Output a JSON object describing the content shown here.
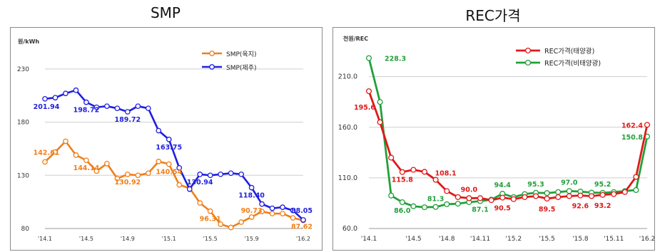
{
  "titles": {
    "left": "SMP",
    "right": "REC가격"
  },
  "colors": {
    "smp_land": "#f07f1a",
    "smp_jeju": "#1f1fe0",
    "rec_solar": "#e01818",
    "rec_nonsolar": "#22a03a",
    "grid": "#cfcfcf"
  },
  "chart_data": [
    {
      "type": "line",
      "title": "SMP",
      "ylabel": "원/kWh",
      "ylim": [
        80,
        250
      ],
      "yticks": [
        80,
        130,
        180,
        230
      ],
      "xticks": [
        "'14.1",
        "'14.5",
        "'14.9",
        "'15.1",
        "'15.5",
        "'15.9",
        "'16.2"
      ],
      "grid": "horizontal",
      "legend": "top-right",
      "x": [
        "'14.1",
        "'14.2",
        "'14.3",
        "'14.4",
        "'14.5",
        "'14.6",
        "'14.7",
        "'14.8",
        "'14.9",
        "'14.10",
        "'14.11",
        "'14.12",
        "'15.1",
        "'15.2",
        "'15.3",
        "'15.4",
        "'15.5",
        "'15.6",
        "'15.7",
        "'15.8",
        "'15.9",
        "'15.10",
        "'15.11",
        "'15.12",
        "'16.1",
        "'16.2"
      ],
      "series": [
        {
          "name": "SMP(육지)",
          "values": [
            142.61,
            152,
            162,
            149,
            144.14,
            134,
            141,
            127,
            130.92,
            130,
            132,
            143,
            140.54,
            121,
            118,
            104,
            96.31,
            84,
            81,
            86,
            90.73,
            96,
            94,
            94,
            90,
            87.62
          ],
          "labels": [
            {
              "i": 0,
              "text": "142.61"
            },
            {
              "i": 4,
              "text": "144.14"
            },
            {
              "i": 8,
              "text": "130.92"
            },
            {
              "i": 12,
              "text": "140.54"
            },
            {
              "i": 16,
              "text": "96.31"
            },
            {
              "i": 20,
              "text": "90.73"
            },
            {
              "i": 25,
              "text": "87.62"
            }
          ]
        },
        {
          "name": "SMP(제주)",
          "values": [
            201.94,
            203,
            207,
            210,
            198.72,
            194,
            195,
            193,
            189.72,
            195,
            193,
            172,
            163.75,
            137,
            117,
            130.94,
            130,
            131,
            132,
            131,
            118.4,
            103,
            99,
            100,
            97,
            88.05
          ],
          "labels": [
            {
              "i": 0,
              "text": "201.94"
            },
            {
              "i": 4,
              "text": "198.72"
            },
            {
              "i": 8,
              "text": "189.72"
            },
            {
              "i": 12,
              "text": "163.75"
            },
            {
              "i": 15,
              "text": "130.94"
            },
            {
              "i": 20,
              "text": "118.40"
            },
            {
              "i": 25,
              "text": "88.05"
            }
          ]
        }
      ]
    },
    {
      "type": "line",
      "title": "REC가격",
      "ylabel": "천원/REC",
      "ylim": [
        60,
        240
      ],
      "yticks": [
        "60.0",
        "110.0",
        "160.0",
        "210.0"
      ],
      "xticks": [
        "'14.1",
        "'14.5",
        "'14.8",
        "'14.11",
        "'15.2",
        "'15.5",
        "'15.8",
        "'15.11",
        "'16.2"
      ],
      "grid": "horizontal",
      "legend": "top-right",
      "x": [
        "'14.1",
        "'14.2",
        "'14.3",
        "'14.4",
        "'14.5",
        "'14.6",
        "'14.7",
        "'14.8",
        "'14.9",
        "'14.10",
        "'14.11",
        "'14.12",
        "'15.1",
        "'15.2",
        "'15.3",
        "'15.4",
        "'15.5",
        "'15.6",
        "'15.7",
        "'15.8",
        "'15.9",
        "'15.10",
        "'15.11",
        "'15.12",
        "'16.1",
        "'16.2"
      ],
      "series": [
        {
          "name": "REC가격(태양광)",
          "values": [
            195.6,
            165,
            130,
            115.8,
            118,
            116,
            108.1,
            97,
            91,
            90,
            90,
            88,
            90.5,
            89,
            91,
            92,
            89.5,
            91,
            92,
            92.6,
            92,
            93.2,
            94,
            96,
            111,
            162.4
          ],
          "labels": [
            {
              "i": 0,
              "text": "195.6"
            },
            {
              "i": 3,
              "text": "115.8"
            },
            {
              "i": 6,
              "text": "108.1"
            },
            {
              "i": 9,
              "text": "90.0"
            },
            {
              "i": 12,
              "text": "90.5"
            },
            {
              "i": 16,
              "text": "89.5"
            },
            {
              "i": 19,
              "text": "92.6"
            },
            {
              "i": 21,
              "text": "93.2"
            },
            {
              "i": 25,
              "text": "162.4"
            }
          ]
        },
        {
          "name": "REC가격(비태양광)",
          "values": [
            228.3,
            185,
            92.5,
            86,
            82,
            81,
            81.3,
            84,
            84.5,
            86,
            87.1,
            88.5,
            94.4,
            91,
            94,
            95.3,
            95,
            96,
            97,
            96.5,
            95.5,
            95.2,
            96,
            97,
            98,
            150.8
          ],
          "labels": [
            {
              "i": 0,
              "text": "228.3"
            },
            {
              "i": 3,
              "text": "86.0"
            },
            {
              "i": 6,
              "text": "81.3"
            },
            {
              "i": 10,
              "text": "87.1"
            },
            {
              "i": 12,
              "text": "94.4"
            },
            {
              "i": 15,
              "text": "95.3"
            },
            {
              "i": 18,
              "text": "97.0"
            },
            {
              "i": 21,
              "text": "95.2"
            },
            {
              "i": 25,
              "text": "150.8"
            }
          ]
        }
      ]
    }
  ]
}
